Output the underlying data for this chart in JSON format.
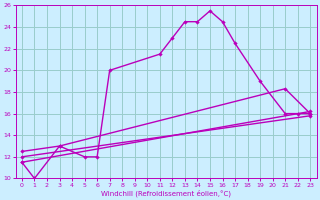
{
  "xlabel": "Windchill (Refroidissement éolien,°C)",
  "bg_color": "#cceeff",
  "grid_color": "#99cccc",
  "line_color": "#bb00bb",
  "xlim": [
    -0.5,
    23.5
  ],
  "ylim": [
    10,
    26
  ],
  "xticks": [
    0,
    1,
    2,
    3,
    4,
    5,
    6,
    7,
    8,
    9,
    10,
    11,
    12,
    13,
    14,
    15,
    16,
    17,
    18,
    19,
    20,
    21,
    22,
    23
  ],
  "yticks": [
    10,
    12,
    14,
    16,
    18,
    20,
    22,
    24,
    26
  ],
  "curve1_x": [
    0,
    1,
    3,
    5,
    6,
    7,
    11,
    12,
    13,
    14,
    15,
    16,
    17,
    19,
    21,
    22,
    23
  ],
  "curve1_y": [
    11.5,
    10.0,
    13.0,
    12.0,
    12.0,
    20.0,
    21.5,
    23.0,
    24.5,
    24.5,
    25.5,
    24.5,
    22.5,
    19.0,
    16.0,
    16.0,
    16.0
  ],
  "curve2_x": [
    0,
    3,
    21,
    23
  ],
  "curve2_y": [
    12.5,
    13.0,
    18.3,
    16.0
  ],
  "curve3_x": [
    0,
    23
  ],
  "curve3_y": [
    11.5,
    16.2
  ],
  "curve4_x": [
    0,
    23
  ],
  "curve4_y": [
    12.0,
    15.8
  ]
}
